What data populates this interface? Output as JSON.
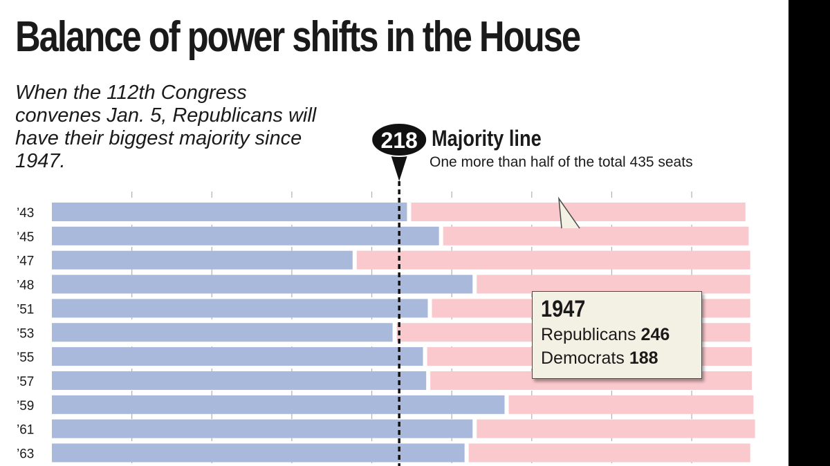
{
  "title": "Balance of power shifts in the House",
  "subtitle": "When the 112th Congress convenes Jan. 5, Republicans will have their biggest majority since 1947.",
  "majority": {
    "value": "218",
    "title": "Majority line",
    "description": "One more than half of the total 435 seats"
  },
  "callout": {
    "year": "1947",
    "rep_label": "Republicans",
    "rep_value": "246",
    "dem_label": "Democrats",
    "dem_value": "188"
  },
  "colors": {
    "democrat": "#a9b9dc",
    "republican": "#f9c9cd",
    "democrat_highlight": "#114d6e",
    "republican_highlight": "#f0525c",
    "majority_marker": "#111111"
  },
  "chart_data": {
    "type": "bar",
    "orientation": "horizontal",
    "stacked": true,
    "total_seats": 435,
    "majority_line": 218,
    "grid": true,
    "highlight": "'47",
    "categories": [
      "’43",
      "’45",
      "’47",
      "’48",
      "’51",
      "’53",
      "’55",
      "’57",
      "’59",
      "’61",
      "’63"
    ],
    "series": [
      {
        "name": "Democrats",
        "values": [
          222,
          242,
          188,
          263,
          235,
          213,
          232,
          234,
          283,
          263,
          258
        ]
      },
      {
        "name": "Republicans",
        "values": [
          209,
          191,
          246,
          171,
          199,
          221,
          203,
          201,
          153,
          174,
          176
        ]
      }
    ]
  }
}
